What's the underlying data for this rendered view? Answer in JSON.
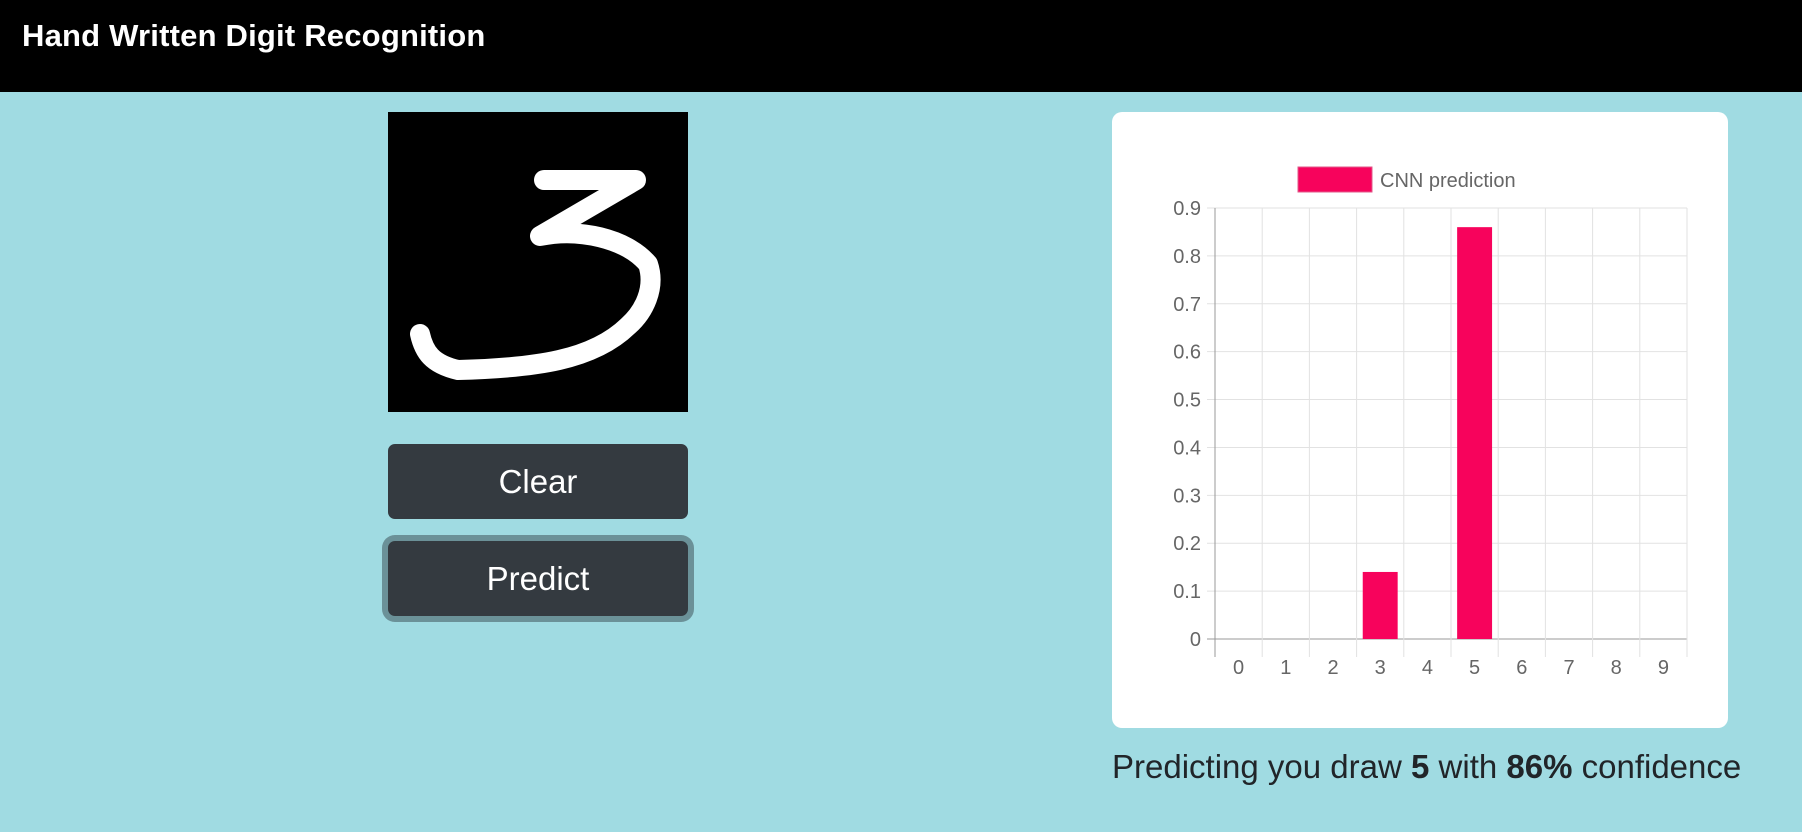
{
  "navbar": {
    "title": "Hand Written Digit Recognition"
  },
  "drawing_canvas": {
    "icon": "handwritten-digit-drawing"
  },
  "buttons": {
    "clear_label": "Clear",
    "predict_label": "Predict"
  },
  "result": {
    "prefix": "Predicting you draw",
    "digit": "5",
    "middle": "with",
    "confidence": "86%",
    "suffix": "confidence"
  },
  "colors": {
    "navbar": "#000000",
    "background": "#a0dbe2",
    "button": "#343a40",
    "bar": "#f7035c"
  },
  "chart_data": {
    "type": "bar",
    "categories": [
      "0",
      "1",
      "2",
      "3",
      "4",
      "5",
      "6",
      "7",
      "8",
      "9"
    ],
    "series": [
      {
        "name": "CNN prediction",
        "values": [
          0,
          0,
          0,
          0.14,
          0,
          0.86,
          0,
          0,
          0,
          0
        ]
      }
    ],
    "yticks": [
      "0",
      "0.1",
      "0.2",
      "0.3",
      "0.4",
      "0.5",
      "0.6",
      "0.7",
      "0.8",
      "0.9"
    ],
    "ylim": [
      0,
      0.9
    ],
    "grid": true,
    "legend_position": "top"
  }
}
